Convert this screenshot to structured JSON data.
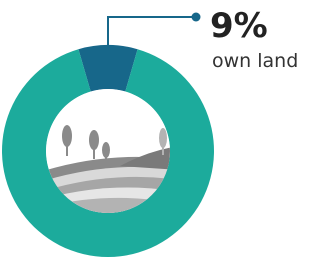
{
  "chart_data": {
    "type": "pie",
    "categories": [
      "own land",
      null
    ],
    "values": [
      9,
      91
    ],
    "value_labels": [
      "9%",
      null
    ],
    "colors": [
      "#17678a",
      "#1cab9c"
    ]
  }
}
